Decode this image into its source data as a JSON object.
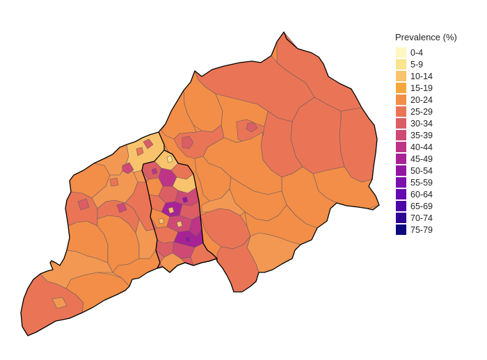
{
  "legend": {
    "title": "Prevalence (%)",
    "items": [
      {
        "label": "0-4",
        "color": "#FFF6C2"
      },
      {
        "label": "5-9",
        "color": "#FCE38D"
      },
      {
        "label": "10-14",
        "color": "#F8C36C"
      },
      {
        "label": "15-19",
        "color": "#F6A73C"
      },
      {
        "label": "20-24",
        "color": "#F28E48"
      },
      {
        "label": "25-29",
        "color": "#E97556"
      },
      {
        "label": "30-34",
        "color": "#DC5E65"
      },
      {
        "label": "35-39",
        "color": "#CE4A75"
      },
      {
        "label": "40-44",
        "color": "#BD3487"
      },
      {
        "label": "45-49",
        "color": "#A82296"
      },
      {
        "label": "50-54",
        "color": "#9316A3"
      },
      {
        "label": "55-59",
        "color": "#7B10AE"
      },
      {
        "label": "60-64",
        "color": "#640AB0"
      },
      {
        "label": "65-69",
        "color": "#4C07A6"
      },
      {
        "label": "70-74",
        "color": "#2F0594"
      },
      {
        "label": "75-79",
        "color": "#0B0880"
      }
    ]
  }
}
